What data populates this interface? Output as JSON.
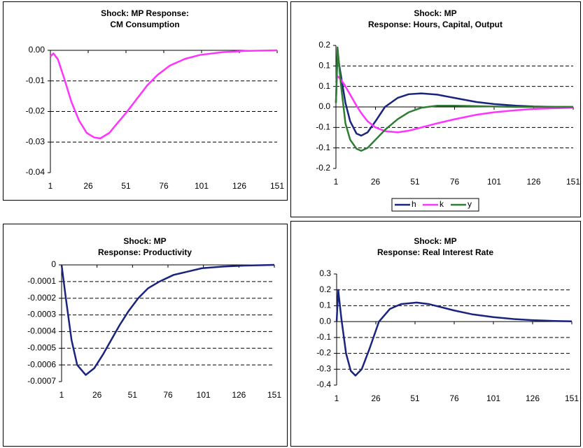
{
  "chart_data": [
    {
      "type": "line",
      "title": [
        "Shock: MP Response:",
        "CM Consumption"
      ],
      "x": [
        1,
        3,
        6,
        10,
        15,
        20,
        25,
        30,
        34,
        40,
        45,
        51,
        58,
        65,
        72,
        80,
        90,
        100,
        115,
        130,
        151
      ],
      "values": [
        -0.002,
        -0.001,
        -0.003,
        -0.009,
        -0.017,
        -0.023,
        -0.027,
        -0.0285,
        -0.0288,
        -0.027,
        -0.024,
        -0.0205,
        -0.016,
        -0.0115,
        -0.008,
        -0.005,
        -0.0028,
        -0.0015,
        -0.0006,
        -0.0002,
        0
      ],
      "color": "#ff33ff",
      "xlim": [
        1,
        151
      ],
      "xticks": [
        1,
        26,
        51,
        76,
        101,
        126,
        151
      ],
      "ylim": [
        -0.04,
        0
      ],
      "yticks": [
        {
          "value": 0,
          "label": "0.00"
        },
        -0.01,
        -0.02,
        -0.03,
        -0.04
      ],
      "grid": true
    },
    {
      "type": "line",
      "title": [
        "Shock: MP",
        "Response: Hours, Capital, Output"
      ],
      "x": [
        1,
        2,
        4,
        7,
        10,
        14,
        17,
        21,
        26,
        32,
        40,
        47,
        55,
        65,
        76,
        90,
        101,
        115,
        126,
        140,
        151
      ],
      "series": [
        {
          "name": "h",
          "color": "#1a237e",
          "values": [
            0.01,
            0.13,
            0.08,
            0.01,
            -0.035,
            -0.065,
            -0.07,
            -0.062,
            -0.035,
            0,
            0.022,
            0.031,
            0.033,
            0.03,
            0.022,
            0.012,
            0.007,
            0.003,
            0.001,
            0,
            0
          ]
        },
        {
          "name": "k",
          "color": "#ff33ff",
          "values": [
            0.06,
            0.075,
            0.068,
            0.05,
            0.03,
            0.003,
            -0.015,
            -0.035,
            -0.05,
            -0.059,
            -0.062,
            -0.058,
            -0.05,
            -0.04,
            -0.03,
            -0.019,
            -0.013,
            -0.008,
            -0.005,
            -0.003,
            -0.002
          ]
        },
        {
          "name": "y",
          "color": "#2e7d32",
          "values": [
            0.01,
            0.145,
            0.06,
            -0.04,
            -0.08,
            -0.102,
            -0.107,
            -0.1,
            -0.08,
            -0.056,
            -0.03,
            -0.013,
            -0.002,
            0.003,
            0.003,
            0.002,
            0.001,
            0,
            0,
            0,
            0
          ]
        }
      ],
      "xlim": [
        1,
        151
      ],
      "xticks": [
        1,
        26,
        51,
        76,
        101,
        126,
        151
      ],
      "ylim": [
        -0.15,
        0.15
      ],
      "yticks": [
        {
          "value": 0.15,
          "label": "0.2"
        },
        0.1,
        {
          "value": 0.05,
          "label": "0.1"
        },
        {
          "value": 0,
          "label": "0.0"
        },
        {
          "value": -0.05,
          "label": "-0.1"
        },
        -0.1,
        {
          "value": -0.15,
          "label": "-0.2"
        }
      ],
      "grid": true,
      "legend": "bottom"
    },
    {
      "type": "line",
      "title": [
        "Shock: MP",
        "Response: Productivity"
      ],
      "x": [
        1,
        4,
        8,
        12,
        18,
        24,
        30,
        36,
        42,
        48,
        55,
        62,
        70,
        80,
        90,
        100,
        115,
        130,
        151
      ],
      "values": [
        0,
        -0.0002,
        -0.00045,
        -0.0006,
        -0.00066,
        -0.00062,
        -0.00054,
        -0.00045,
        -0.00036,
        -0.00028,
        -0.0002,
        -0.00014,
        -0.0001,
        -6e-05,
        -4e-05,
        -2e-05,
        -1e-05,
        -4e-06,
        0
      ],
      "color": "#1a237e",
      "xlim": [
        1,
        151
      ],
      "xticks": [
        1,
        26,
        51,
        76,
        101,
        126,
        151
      ],
      "ylim": [
        -0.0007,
        0
      ],
      "yticks": [
        0,
        -0.0001,
        -0.0002,
        -0.0003,
        -0.0004,
        -0.0005,
        -0.0006,
        -0.0007
      ],
      "grid": true
    },
    {
      "type": "line",
      "title": [
        "Shock: MP",
        "Response: Real Interest Rate"
      ],
      "x": [
        1,
        2,
        4,
        7,
        10,
        13,
        17,
        22,
        28,
        35,
        42,
        52,
        60,
        68,
        76,
        88,
        101,
        114,
        126,
        140,
        151
      ],
      "values": [
        0,
        0.2,
        0.02,
        -0.2,
        -0.31,
        -0.34,
        -0.3,
        -0.17,
        0,
        0.08,
        0.11,
        0.12,
        0.11,
        0.09,
        0.07,
        0.045,
        0.028,
        0.016,
        0.009,
        0.004,
        0.002
      ],
      "color": "#1a237e",
      "xlim": [
        1,
        151
      ],
      "xticks": [
        1,
        26,
        51,
        76,
        101,
        126,
        151
      ],
      "ylim": [
        -0.4,
        0.3
      ],
      "yticks": [
        0.3,
        0.2,
        0.1,
        {
          "value": 0,
          "label": "0.0"
        },
        -0.1,
        -0.2,
        -0.3,
        -0.4
      ],
      "grid": true
    }
  ]
}
